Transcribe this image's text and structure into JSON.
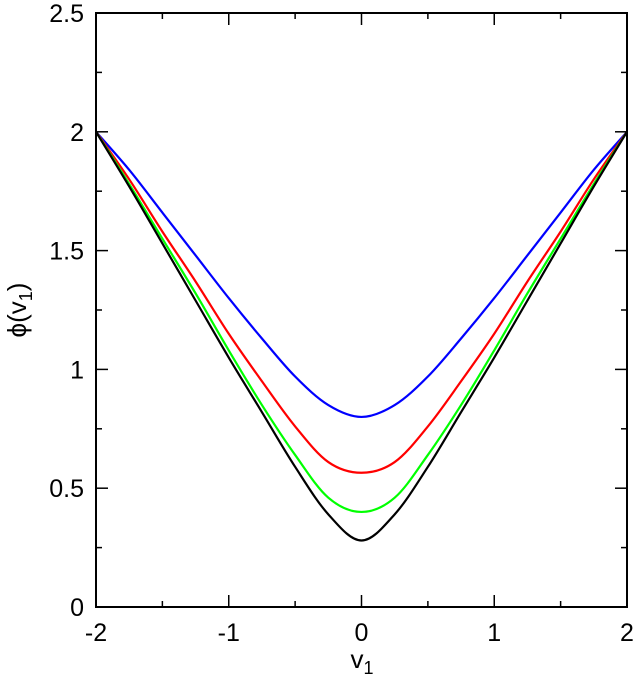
{
  "chart_data": {
    "type": "line",
    "title": "",
    "xlabel": {
      "main": "v",
      "sub": "1"
    },
    "ylabel": {
      "main": "ϕ(v",
      "sub": "1",
      "tail": ")"
    },
    "xlim": [
      -2,
      2
    ],
    "ylim": [
      0,
      2.5
    ],
    "x_major_ticks": [
      -2,
      -1,
      0,
      1,
      2
    ],
    "x_tick_labels": [
      "-2",
      "-1",
      "0",
      "1",
      "2"
    ],
    "y_major_ticks": [
      0,
      0.5,
      1,
      1.5,
      2,
      2.5
    ],
    "y_tick_labels": [
      "0",
      "0.5",
      "1",
      "1.5",
      "2",
      "2.5"
    ],
    "grid": false,
    "legend": "none",
    "x": [
      -2.0,
      -1.75,
      -1.5,
      -1.25,
      -1.0,
      -0.75,
      -0.5,
      -0.25,
      0.0,
      0.25,
      0.5,
      0.75,
      1.0,
      1.25,
      1.5,
      1.75,
      2.0
    ],
    "series": [
      {
        "color": "#0000ff",
        "values": [
          2.0,
          1.84,
          1.66,
          1.48,
          1.3,
          1.13,
          0.97,
          0.85,
          0.8,
          0.85,
          0.97,
          1.13,
          1.3,
          1.48,
          1.66,
          1.84,
          2.0
        ]
      },
      {
        "color": "#ff0000",
        "values": [
          2.0,
          1.8,
          1.58,
          1.37,
          1.15,
          0.95,
          0.76,
          0.61,
          0.565,
          0.61,
          0.76,
          0.95,
          1.15,
          1.37,
          1.58,
          1.8,
          2.0
        ]
      },
      {
        "color": "#00ff00",
        "values": [
          2.0,
          1.78,
          1.55,
          1.32,
          1.08,
          0.85,
          0.64,
          0.46,
          0.4,
          0.46,
          0.64,
          0.85,
          1.08,
          1.32,
          1.55,
          1.78,
          2.0
        ]
      },
      {
        "color": "#000000",
        "values": [
          2.0,
          1.77,
          1.53,
          1.29,
          1.05,
          0.82,
          0.59,
          0.39,
          0.28,
          0.39,
          0.59,
          0.82,
          1.05,
          1.29,
          1.53,
          1.77,
          2.0
        ]
      }
    ]
  }
}
